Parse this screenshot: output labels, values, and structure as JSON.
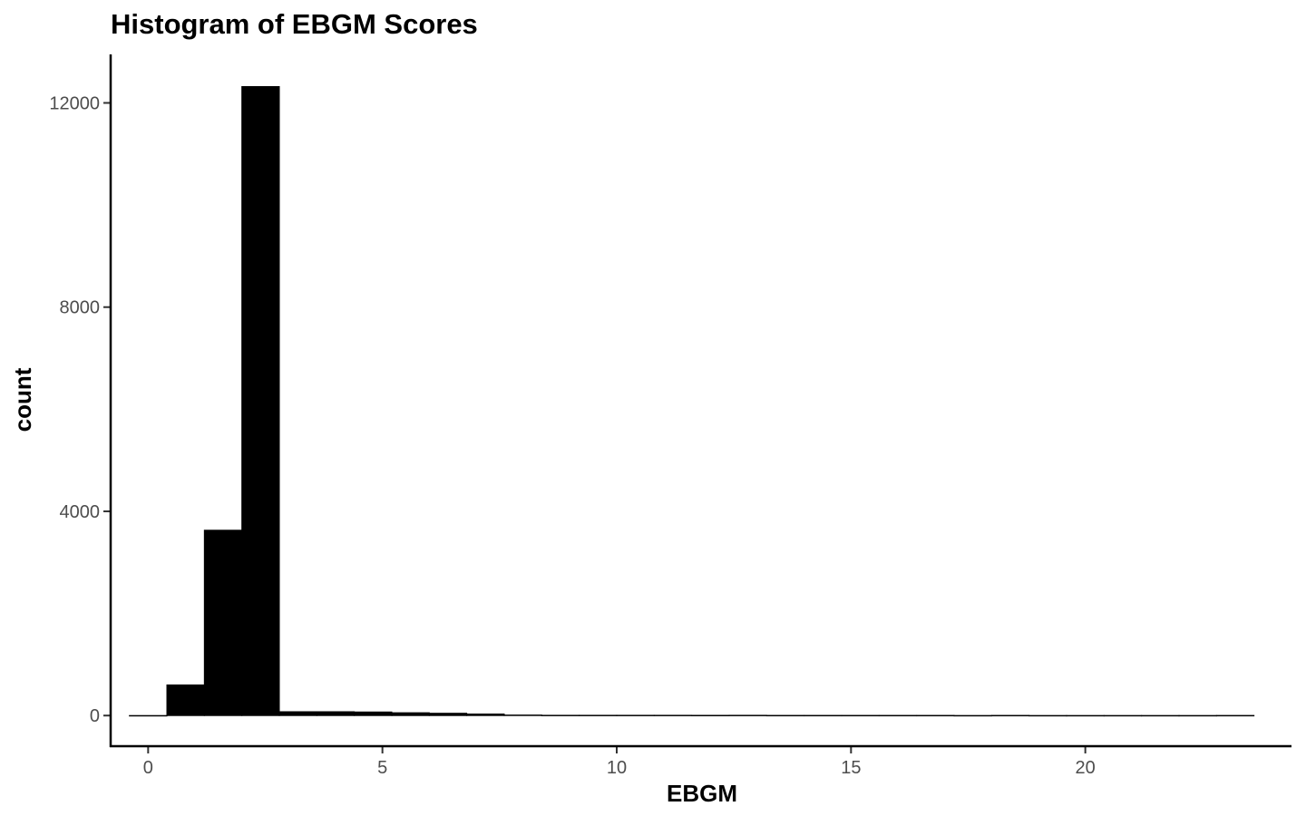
{
  "chart_data": {
    "type": "bar",
    "title": "Histogram of EBGM Scores",
    "xlabel": "EBGM",
    "ylabel": "count",
    "xlim": [
      -0.8,
      24.4
    ],
    "ylim": [
      -600,
      12950
    ],
    "x_ticks": [
      {
        "value": 0,
        "label": "0"
      },
      {
        "value": 5,
        "label": "5"
      },
      {
        "value": 10,
        "label": "10"
      },
      {
        "value": 15,
        "label": "15"
      },
      {
        "value": 20,
        "label": "20"
      }
    ],
    "y_ticks": [
      {
        "value": 0,
        "label": "0"
      },
      {
        "value": 4000,
        "label": "4000"
      },
      {
        "value": 8000,
        "label": "8000"
      },
      {
        "value": 12000,
        "label": "12000"
      }
    ],
    "bins": [
      {
        "x0": -0.4,
        "x1": 0.4,
        "count": 0
      },
      {
        "x0": 0.4,
        "x1": 1.2,
        "count": 600
      },
      {
        "x0": 1.2,
        "x1": 2.0,
        "count": 3630
      },
      {
        "x0": 2.0,
        "x1": 2.8,
        "count": 12320
      },
      {
        "x0": 2.8,
        "x1": 3.6,
        "count": 75
      },
      {
        "x0": 3.6,
        "x1": 4.4,
        "count": 75
      },
      {
        "x0": 4.4,
        "x1": 5.2,
        "count": 70
      },
      {
        "x0": 5.2,
        "x1": 6.0,
        "count": 55
      },
      {
        "x0": 6.0,
        "x1": 6.8,
        "count": 45
      },
      {
        "x0": 6.8,
        "x1": 7.6,
        "count": 30
      },
      {
        "x0": 7.6,
        "x1": 8.4,
        "count": 10
      },
      {
        "x0": 8.4,
        "x1": 9.2,
        "count": 5
      },
      {
        "x0": 9.2,
        "x1": 10.0,
        "count": 5
      },
      {
        "x0": 10.0,
        "x1": 10.8,
        "count": 5
      },
      {
        "x0": 10.8,
        "x1": 11.6,
        "count": 5
      },
      {
        "x0": 11.6,
        "x1": 12.4,
        "count": 4
      },
      {
        "x0": 12.4,
        "x1": 13.2,
        "count": 5
      },
      {
        "x0": 13.2,
        "x1": 14.0,
        "count": 3
      },
      {
        "x0": 14.0,
        "x1": 14.8,
        "count": 3
      },
      {
        "x0": 14.8,
        "x1": 15.6,
        "count": 3
      },
      {
        "x0": 15.6,
        "x1": 16.4,
        "count": 3
      },
      {
        "x0": 16.4,
        "x1": 17.2,
        "count": 3
      },
      {
        "x0": 17.2,
        "x1": 18.0,
        "count": 1
      },
      {
        "x0": 18.0,
        "x1": 18.8,
        "count": 3
      },
      {
        "x0": 18.8,
        "x1": 19.6,
        "count": 1
      },
      {
        "x0": 19.6,
        "x1": 20.4,
        "count": 1
      },
      {
        "x0": 20.4,
        "x1": 21.2,
        "count": 1
      },
      {
        "x0": 21.2,
        "x1": 22.0,
        "count": 1
      },
      {
        "x0": 22.0,
        "x1": 22.8,
        "count": 1
      },
      {
        "x0": 22.8,
        "x1": 23.6,
        "count": 2
      }
    ],
    "grid": false,
    "legend": "none",
    "bar_color": "#000000"
  }
}
